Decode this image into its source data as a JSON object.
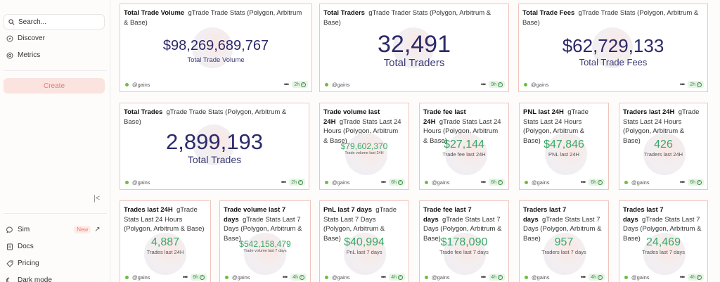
{
  "sidebar": {
    "search_placeholder": "Search...",
    "nav": [
      {
        "label": "Discover",
        "icon": "compass-icon"
      },
      {
        "label": "Metrics",
        "icon": "metrics-icon"
      }
    ],
    "create_label": "Create",
    "bottom": [
      {
        "label": "Sim",
        "badge": "New",
        "icon": "chat-icon"
      },
      {
        "label": "Docs",
        "icon": "docs-icon"
      },
      {
        "label": "Pricing",
        "icon": "tag-icon"
      },
      {
        "label": "Dark mode",
        "icon": "moon-icon"
      }
    ]
  },
  "cards": [
    {
      "title_bold": "Total Trade Volume",
      "title_rest": "gTrade Trade Stats (Polygon, Arbitrum & Base)",
      "value": "$98,269,689,767",
      "label": "Total Trade Volume",
      "author": "@gains",
      "age": "2h"
    },
    {
      "title_bold": "Total Traders",
      "title_rest": "gTrade Trader Stats (Polygon, Arbitrum & Base)",
      "value": "32,491",
      "label": "Total Traders",
      "author": "@gains",
      "age": "9h"
    },
    {
      "title_bold": "Total Trade Fees",
      "title_rest": "gTrade Trade Stats (Polygon, Arbitrum & Base)",
      "value": "$62,729,133",
      "label": "Total Trade Fees",
      "author": "@gains",
      "age": "2h"
    },
    {
      "title_bold": "Total Trades",
      "title_rest": "gTrade Trade Stats (Polygon, Arbitrum & Base)",
      "value": "2,899,193",
      "label": "Total Trades",
      "author": "@gains",
      "age": "2h"
    },
    {
      "title_bold": "Trade volume last 24H",
      "title_rest": "gTrade Stats Last 24 Hours (Polygon, Arbitrum & Base)",
      "value": "$79,602,370",
      "label": "Trade volume last 24H",
      "author": "@gains",
      "age": "6h"
    },
    {
      "title_bold": "Trade fee last 24H",
      "title_rest": "gTrade Stats Last 24 Hours (Polygon, Arbitrum & Base)",
      "value": "$27,144",
      "label": "Trade fee last 24H",
      "author": "@gains",
      "age": "6h"
    },
    {
      "title_bold": "PNL last 24H",
      "title_rest": "gTrade Stats Last 24 Hours (Polygon, Arbitrum & Base)",
      "value": "$47,846",
      "label": "PNL last 24H",
      "author": "@gains",
      "age": "6h"
    },
    {
      "title_bold": "Traders last 24H",
      "title_rest": "gTrade Stats Last 24 Hours (Polygon, Arbitrum & Base)",
      "value": "426",
      "label": "Traders last 24H",
      "author": "@gains",
      "age": "6h"
    },
    {
      "title_bold": "Trades last 24H",
      "title_rest": "gTrade Stats Last 24 Hours (Polygon, Arbitrum & Base)",
      "value": "4,887",
      "label": "Trades last 24H",
      "author": "@gains",
      "age": "6h"
    },
    {
      "title_bold": "Trade volume last 7 days",
      "title_rest": "gTrade Stats Last 7 Days (Polygon, Arbitrum & Base)",
      "value": "$542,158,479",
      "label": "Trade volume last 7 days",
      "author": "@gains",
      "age": "4h"
    },
    {
      "title_bold": "PnL last 7 days",
      "title_rest": "gTrade Stats Last 7 Days (Polygon, Arbitrum & Base)",
      "value": "$40,994",
      "label": "PnL last 7 days",
      "author": "@gains",
      "age": "4h"
    },
    {
      "title_bold": "Trade fee last 7 days",
      "title_rest": "gTrade Stats Last 7 Days (Polygon, Arbitrum & Base)",
      "value": "$178,090",
      "label": "Trade fee last 7 days",
      "author": "@gains",
      "age": "4h"
    },
    {
      "title_bold": "Traders last 7 days",
      "title_rest": "gTrade Stats Last 7 Days (Polygon, Arbitrum & Base)",
      "value": "957",
      "label": "Traders last 7 days",
      "author": "@gains",
      "age": "4h"
    },
    {
      "title_bold": "Trades last 7 days",
      "title_rest": "gTrade Stats Last 7 Days (Polygon, Arbitrum & Base)",
      "value": "24,469",
      "label": "Trades last 7 days",
      "author": "@gains",
      "age": "4h"
    }
  ]
}
